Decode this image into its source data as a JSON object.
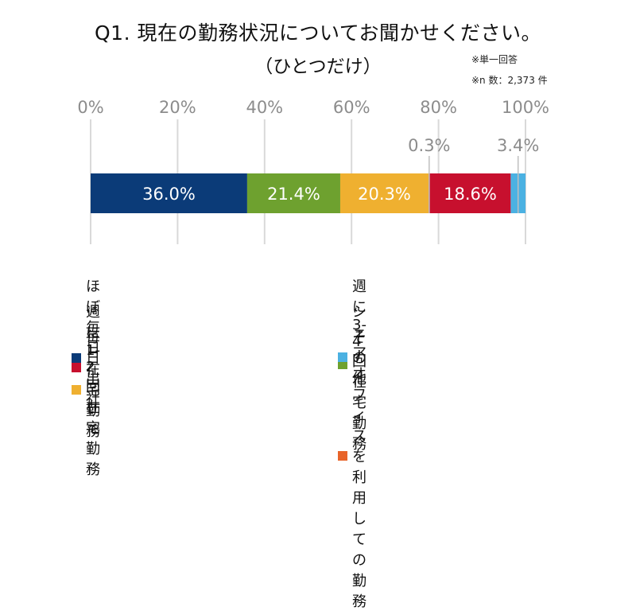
{
  "chart_data": {
    "type": "bar",
    "orientation": "horizontal-stacked-100",
    "title": "Q1. 現在の勤務状況についてお聞かせください。",
    "subtitle": "（ひとつだけ）",
    "notes": [
      "※単一回答",
      "※n 数：2,373 件"
    ],
    "xlim": [
      0,
      100
    ],
    "x_ticks": [
      "0%",
      "20%",
      "40%",
      "60%",
      "80%",
      "100%"
    ],
    "grid": true,
    "legend_position": "bottom",
    "series": [
      {
        "name": "ほぼ毎日 在宅勤務",
        "value": 36.0,
        "label": "36.0%",
        "color": "#0b3b78"
      },
      {
        "name": "週に3-4回 在宅勤務",
        "value": 21.4,
        "label": "21.4%",
        "color": "#6ea12f"
      },
      {
        "name": "週に1-2回 在宅勤務",
        "value": 20.3,
        "label": "20.3%",
        "color": "#efb030"
      },
      {
        "name": "シェアオフィスを利用しての勤務",
        "value": 0.3,
        "label": "0.3%",
        "color": "#e8642a"
      },
      {
        "name": "毎日出社",
        "value": 18.6,
        "label": "18.6%",
        "color": "#c7102e"
      },
      {
        "name": "その他",
        "value": 3.4,
        "label": "3.4%",
        "color": "#4bb1e2"
      }
    ]
  }
}
